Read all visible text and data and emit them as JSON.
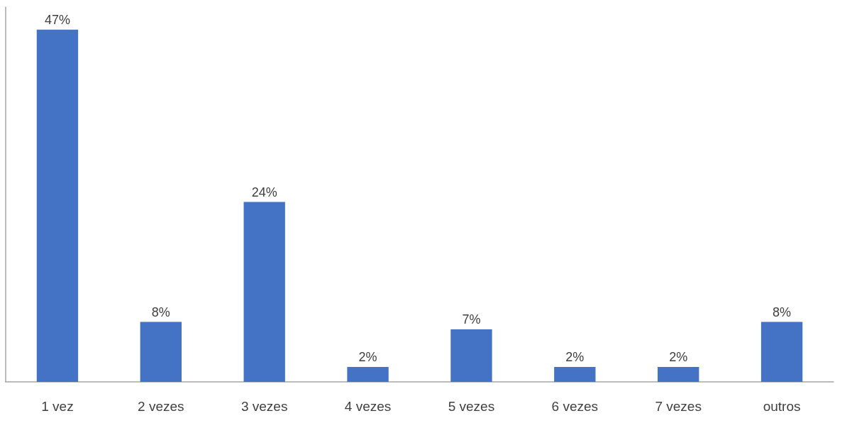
{
  "chart_data": {
    "type": "bar",
    "categories": [
      "1 vez",
      "2 vezes",
      "3 vezes",
      "4 vezes",
      "5 vezes",
      "6 vezes",
      "7 vezes",
      "outros"
    ],
    "values": [
      47,
      8,
      24,
      2,
      7,
      2,
      2,
      8
    ],
    "value_labels": [
      "47%",
      "8%",
      "24%",
      "2%",
      "7%",
      "2%",
      "2%",
      "8%"
    ],
    "color": "#4472c4",
    "tick_labels": "x",
    "grid": false
  }
}
